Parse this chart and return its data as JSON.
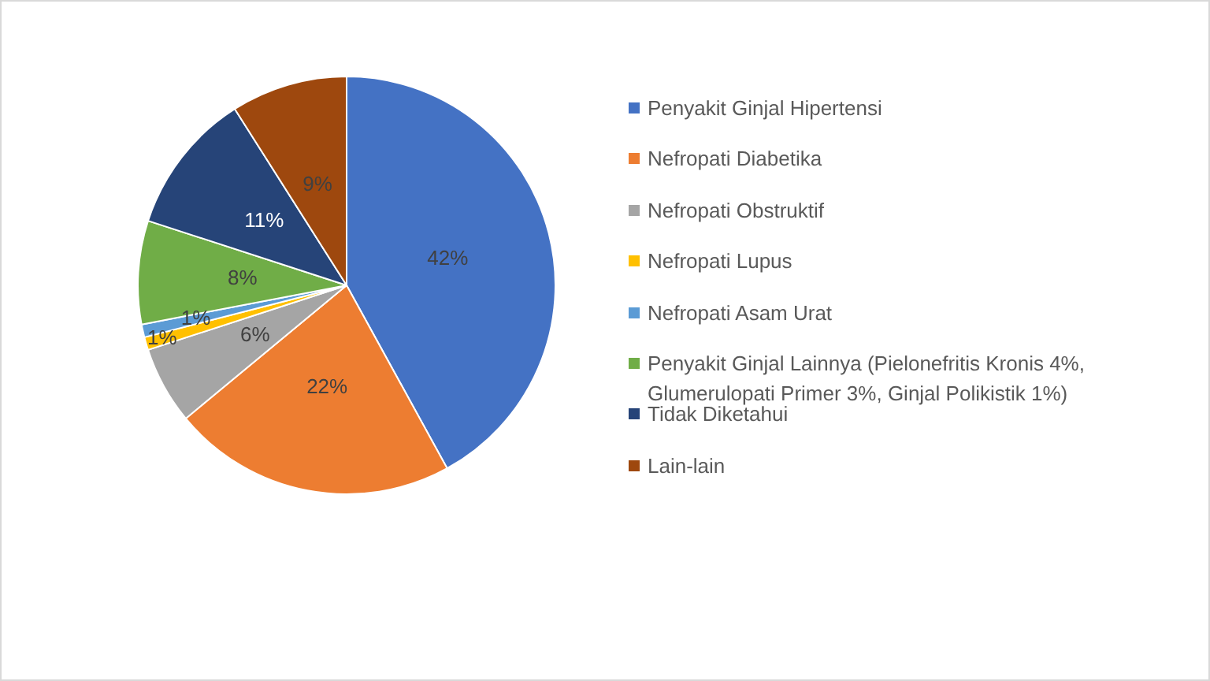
{
  "chart_data": {
    "type": "pie",
    "categories": [
      "Penyakit Ginjal Hipertensi",
      "Nefropati Diabetika",
      "Nefropati Obstruktif",
      "Nefropati Lupus",
      "Nefropati Asam Urat",
      "Penyakit Ginjal Lainnya (Pielonefritis Kronis 4%, Glumerulopati Primer 3%, Ginjal Polikistik 1%)",
      "Tidak Diketahui",
      "Lain-lain"
    ],
    "values": [
      42,
      22,
      6,
      1,
      1,
      8,
      11,
      9
    ],
    "value_labels": [
      "42%",
      "22%",
      "6%",
      "1%",
      "1%",
      "8%",
      "11%",
      "9%"
    ],
    "colors": [
      "#4472c4",
      "#ed7d31",
      "#a5a5a5",
      "#ffc000",
      "#5b9bd5",
      "#70ad47",
      "#264478",
      "#9e480e"
    ],
    "legend": "right"
  }
}
